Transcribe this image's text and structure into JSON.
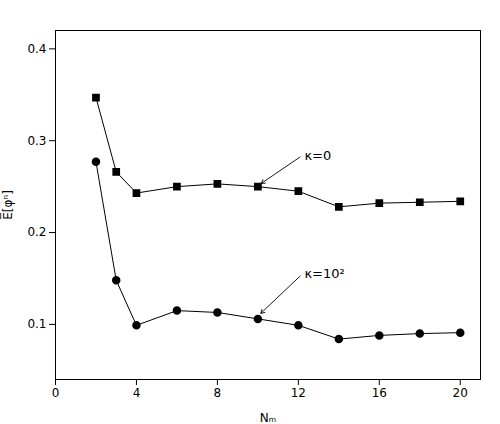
{
  "chart_data": {
    "type": "line",
    "x": [
      2,
      3,
      4,
      6,
      8,
      10,
      12,
      14,
      16,
      18,
      20
    ],
    "series": [
      {
        "color": "#000000",
        "marker": "square",
        "values": [
          0.347,
          0.266,
          0.243,
          0.25,
          0.253,
          0.25,
          0.245,
          0.228,
          0.232,
          0.233,
          0.234
        ]
      },
      {
        "color": "#000000",
        "marker": "circle",
        "values": [
          0.277,
          0.148,
          0.099,
          0.115,
          0.113,
          0.106,
          0.099,
          0.084,
          0.088,
          0.09,
          0.091
        ]
      }
    ],
    "xlabel": "Nₘ",
    "ylabel": "E̅[φⁿ]",
    "xlim": [
      0,
      21
    ],
    "ylim": [
      0.04,
      0.42
    ],
    "xticks": [
      0,
      4,
      8,
      12,
      16,
      20
    ],
    "yticks": [
      0.1,
      0.2,
      0.3,
      0.4
    ],
    "grid": false,
    "annotations": [
      {
        "text": "κ=0",
        "x": 10.0,
        "y": 0.251,
        "text_x": 12.2,
        "text_y": 0.284
      },
      {
        "text": "κ=10²",
        "x": 10.0,
        "y": 0.109,
        "text_x": 12.2,
        "text_y": 0.155
      }
    ]
  }
}
